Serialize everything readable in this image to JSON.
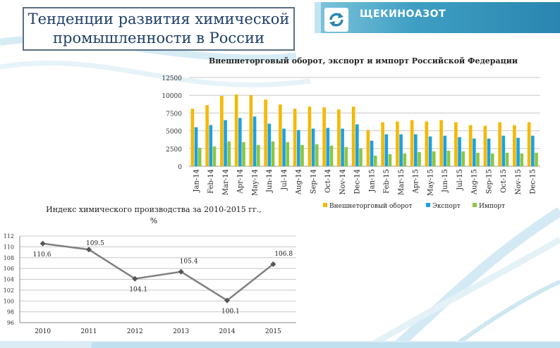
{
  "page": {
    "title_line1": "Тенденции развития химической",
    "title_line2": "промышленности в России",
    "brand_name": "ЩЕКИНОАЗОТ",
    "brand_logo_icon": "refresh-arrows-icon",
    "accent_color": "#2a86b0"
  },
  "chart_data": [
    {
      "type": "bar",
      "title": "Внешнеторговый оборот, экспорт и импорт Российской Федерации",
      "categories": [
        "Jan-14",
        "Feb-14",
        "Mar-14",
        "Apr-14",
        "May-14",
        "Jun-14",
        "Jul-14",
        "Aug-14",
        "Sep-14",
        "Oct-14",
        "Nov-14",
        "Dec-14",
        "Jan-15",
        "Feb-15",
        "Mar-15",
        "Apr-15",
        "May-15",
        "Jun-15",
        "Jul-15",
        "Aug-15",
        "Sep-15",
        "Oct-15",
        "Nov-15",
        "Dec-15"
      ],
      "series": [
        {
          "name": "Внешнеторговый оборот",
          "color": "#f5b800",
          "values": [
            8100,
            8600,
            9900,
            10100,
            10000,
            9400,
            8700,
            8100,
            8400,
            8300,
            8000,
            8400,
            5100,
            6200,
            6300,
            6500,
            6300,
            6500,
            6200,
            5800,
            5700,
            6200,
            5800,
            6200
          ]
        },
        {
          "name": "Экспорт",
          "color": "#1ba1e2",
          "values": [
            5500,
            5800,
            6500,
            6800,
            7000,
            6000,
            5300,
            5100,
            5300,
            5400,
            5300,
            5900,
            3600,
            4500,
            4500,
            4500,
            4200,
            4300,
            4100,
            3900,
            3900,
            4300,
            4000,
            4300
          ]
        },
        {
          "name": "Импорт",
          "color": "#8dc63f",
          "values": [
            2600,
            2800,
            3500,
            3400,
            3000,
            3500,
            3400,
            3000,
            3100,
            2900,
            2700,
            2500,
            1500,
            1700,
            1800,
            2000,
            2100,
            2200,
            2100,
            1900,
            1800,
            1900,
            1800,
            1900
          ]
        }
      ],
      "yticks": [
        "0",
        "2500",
        "5000",
        "7500",
        "10000",
        "12500"
      ],
      "ylim": [
        0,
        12500
      ],
      "legend_position": "bottom"
    },
    {
      "type": "line",
      "title_line1": "Индекс химического производства за 2010-2015 гг.,",
      "title_line2": "%",
      "x": [
        "2010",
        "2011",
        "2012",
        "2013",
        "2014",
        "2015"
      ],
      "values": [
        110.6,
        109.5,
        104.1,
        105.4,
        100.1,
        106.8
      ],
      "labels": [
        "110.6",
        "109.5",
        "104.1",
        "105.4",
        "100.1",
        "106.8"
      ],
      "yticks": [
        "96",
        "98",
        "100",
        "102",
        "104",
        "106",
        "108",
        "110",
        "112"
      ],
      "ylim": [
        96,
        112
      ],
      "line_color": "#808080"
    }
  ]
}
